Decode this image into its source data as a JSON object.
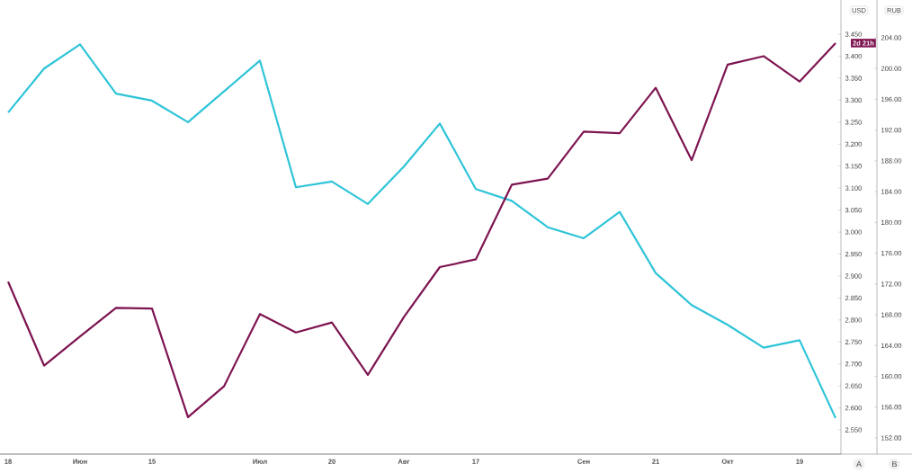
{
  "chart_data": {
    "type": "line",
    "ylabel": "USD",
    "y2label": "RUB",
    "categories": [
      "18",
      null,
      "Июн",
      null,
      "15",
      null,
      null,
      "Июл",
      null,
      "20",
      null,
      "Авг",
      null,
      "17",
      null,
      null,
      "Сен",
      null,
      "21",
      null,
      "Окт",
      null,
      "19",
      null
    ],
    "series": [
      {
        "color": "#2ec4d8",
        "axis": "y",
        "values": [
          3.272,
          3.372,
          3.427,
          3.315,
          3.299,
          3.25,
          3.32,
          3.39,
          3.102,
          3.115,
          3.064,
          3.149,
          3.247,
          3.098,
          3.071,
          3.011,
          2.986,
          3.046,
          2.907,
          2.834,
          2.789,
          2.737,
          2.754,
          2.577
        ]
      },
      {
        "color": "#7d1450",
        "axis": "y2",
        "values": [
          172.3,
          161.4,
          165.2,
          168.9,
          168.8,
          154.7,
          158.7,
          168.1,
          165.7,
          167.0,
          160.2,
          167.7,
          174.2,
          175.2,
          184.9,
          185.7,
          191.8,
          191.6,
          197.5,
          188.1,
          200.5,
          201.6,
          198.3,
          203.3
        ]
      }
    ],
    "ylim": [
      2.495,
      3.528
    ],
    "yticks": [
      {
        "value": 2.55,
        "label": "2.550"
      },
      {
        "value": 2.6,
        "label": "2.600"
      },
      {
        "value": 2.65,
        "label": "2.650"
      },
      {
        "value": 2.7,
        "label": "2.700"
      },
      {
        "value": 2.75,
        "label": "2.750"
      },
      {
        "value": 2.8,
        "label": "2.800"
      },
      {
        "value": 2.85,
        "label": "2.850"
      },
      {
        "value": 2.9,
        "label": "2.900"
      },
      {
        "value": 2.95,
        "label": "2.950"
      },
      {
        "value": 3.0,
        "label": "3.000"
      },
      {
        "value": 3.05,
        "label": "3.050"
      },
      {
        "value": 3.1,
        "label": "3.100"
      },
      {
        "value": 3.15,
        "label": "3.150"
      },
      {
        "value": 3.2,
        "label": "3.200"
      },
      {
        "value": 3.25,
        "label": "3.250"
      },
      {
        "value": 3.3,
        "label": "3.300"
      },
      {
        "value": 3.35,
        "label": "3.350"
      },
      {
        "value": 3.4,
        "label": "3.400"
      },
      {
        "value": 3.45,
        "label": "3.450"
      }
    ],
    "y2lim": [
      149.9,
      208.9
    ],
    "y2ticks": [
      {
        "value": 152,
        "label": "152.00"
      },
      {
        "value": 156,
        "label": "156.00"
      },
      {
        "value": 160,
        "label": "160.00"
      },
      {
        "value": 164,
        "label": "164.00"
      },
      {
        "value": 168,
        "label": "168.00"
      },
      {
        "value": 172,
        "label": "172.00"
      },
      {
        "value": 176,
        "label": "176.00"
      },
      {
        "value": 180,
        "label": "180.00"
      },
      {
        "value": 184,
        "label": "184.00"
      },
      {
        "value": 188,
        "label": "188.00"
      },
      {
        "value": 192,
        "label": "192.00"
      },
      {
        "value": 196,
        "label": "196.00"
      },
      {
        "value": 200,
        "label": "200.00"
      },
      {
        "value": 204,
        "label": "204.00"
      }
    ],
    "annotations": [
      "2d 21h",
      "A",
      "B"
    ]
  }
}
